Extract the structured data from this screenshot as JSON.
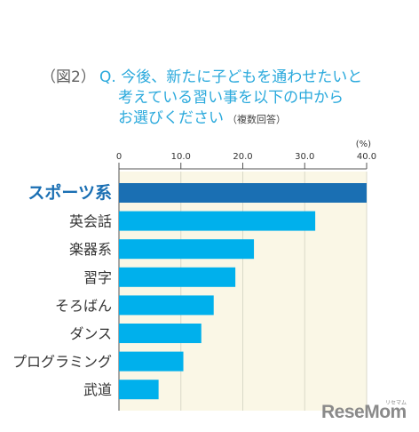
{
  "figure_label": "（図2）",
  "question": {
    "line1": "Q. 今後、新たに子どもを通わせたいと",
    "line2": "考えている習い事を以下の中から",
    "line3": "お選びください",
    "note": "（複数回答）"
  },
  "chart_data": {
    "type": "bar",
    "orientation": "horizontal",
    "unit_label": "(%)",
    "xlim": [
      0,
      40
    ],
    "ticks": [
      "0",
      "10.0",
      "20.0",
      "30.0",
      "40.0"
    ],
    "categories": [
      "スポーツ系",
      "英会話",
      "楽器系",
      "習字",
      "そろばん",
      "ダンス",
      "プログラミング",
      "武道"
    ],
    "values": [
      40.0,
      31.7,
      21.8,
      18.8,
      15.3,
      13.3,
      10.4,
      6.4
    ],
    "highlight_category": "スポーツ系",
    "colors": {
      "bar": "#00b0ec",
      "highlight_bar": "#1a6fb3",
      "plot_bg": "#faf7e6",
      "grid": "#d9d9c8"
    },
    "grid": true
  },
  "watermark": {
    "text": "ReseMom",
    "sub": "リセマム"
  }
}
